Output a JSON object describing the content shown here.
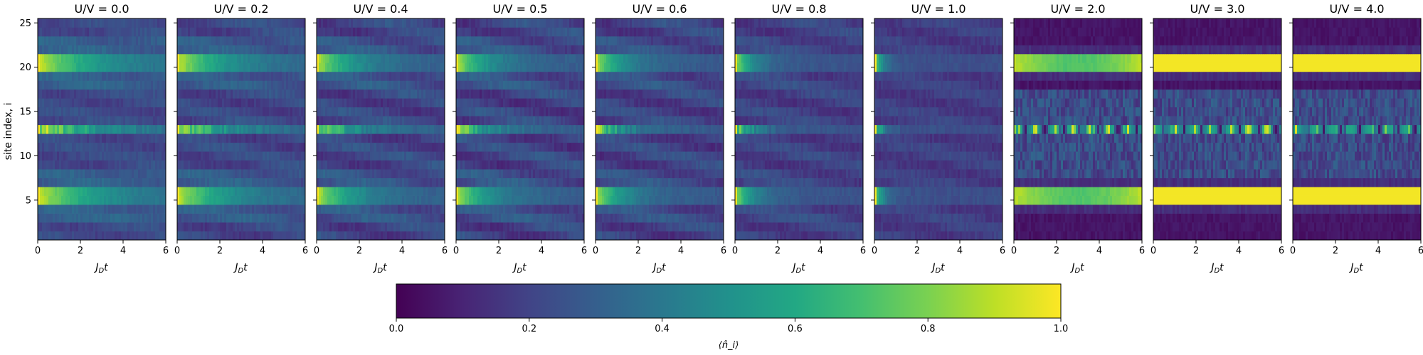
{
  "chart_data": {
    "type": "heatmap",
    "ylabel": "site index, i",
    "xlabel_panel": "J_D t",
    "xlim": [
      0,
      6
    ],
    "ylim": [
      0.5,
      25.5
    ],
    "xticks": [
      0,
      2,
      4,
      6
    ],
    "yticks": [
      5,
      10,
      15,
      20,
      25
    ],
    "grid": false,
    "sites": 25,
    "time_bins": 60,
    "initial_occupied_sites": [
      5,
      6,
      13,
      20,
      21
    ],
    "panels": [
      {
        "title": "U/V = 0.0",
        "U_over_V": 0.0
      },
      {
        "title": "U/V = 0.2",
        "U_over_V": 0.2
      },
      {
        "title": "U/V = 0.4",
        "U_over_V": 0.4
      },
      {
        "title": "U/V = 0.5",
        "U_over_V": 0.5
      },
      {
        "title": "U/V = 0.6",
        "U_over_V": 0.6
      },
      {
        "title": "U/V = 0.8",
        "U_over_V": 0.8
      },
      {
        "title": "U/V = 1.0",
        "U_over_V": 1.0
      },
      {
        "title": "U/V = 2.0",
        "U_over_V": 2.0
      },
      {
        "title": "U/V = 3.0",
        "U_over_V": 3.0
      },
      {
        "title": "U/V = 4.0",
        "U_over_V": 4.0
      }
    ],
    "colorbar": {
      "label": "⟨n̂_i⟩",
      "range": [
        0.0,
        1.0
      ],
      "ticks": [
        "0.0",
        "0.2",
        "0.4",
        "0.6",
        "0.8",
        "1.0"
      ],
      "colormap": "viridis",
      "orientation": "horizontal",
      "placement": "bottom-center"
    }
  }
}
